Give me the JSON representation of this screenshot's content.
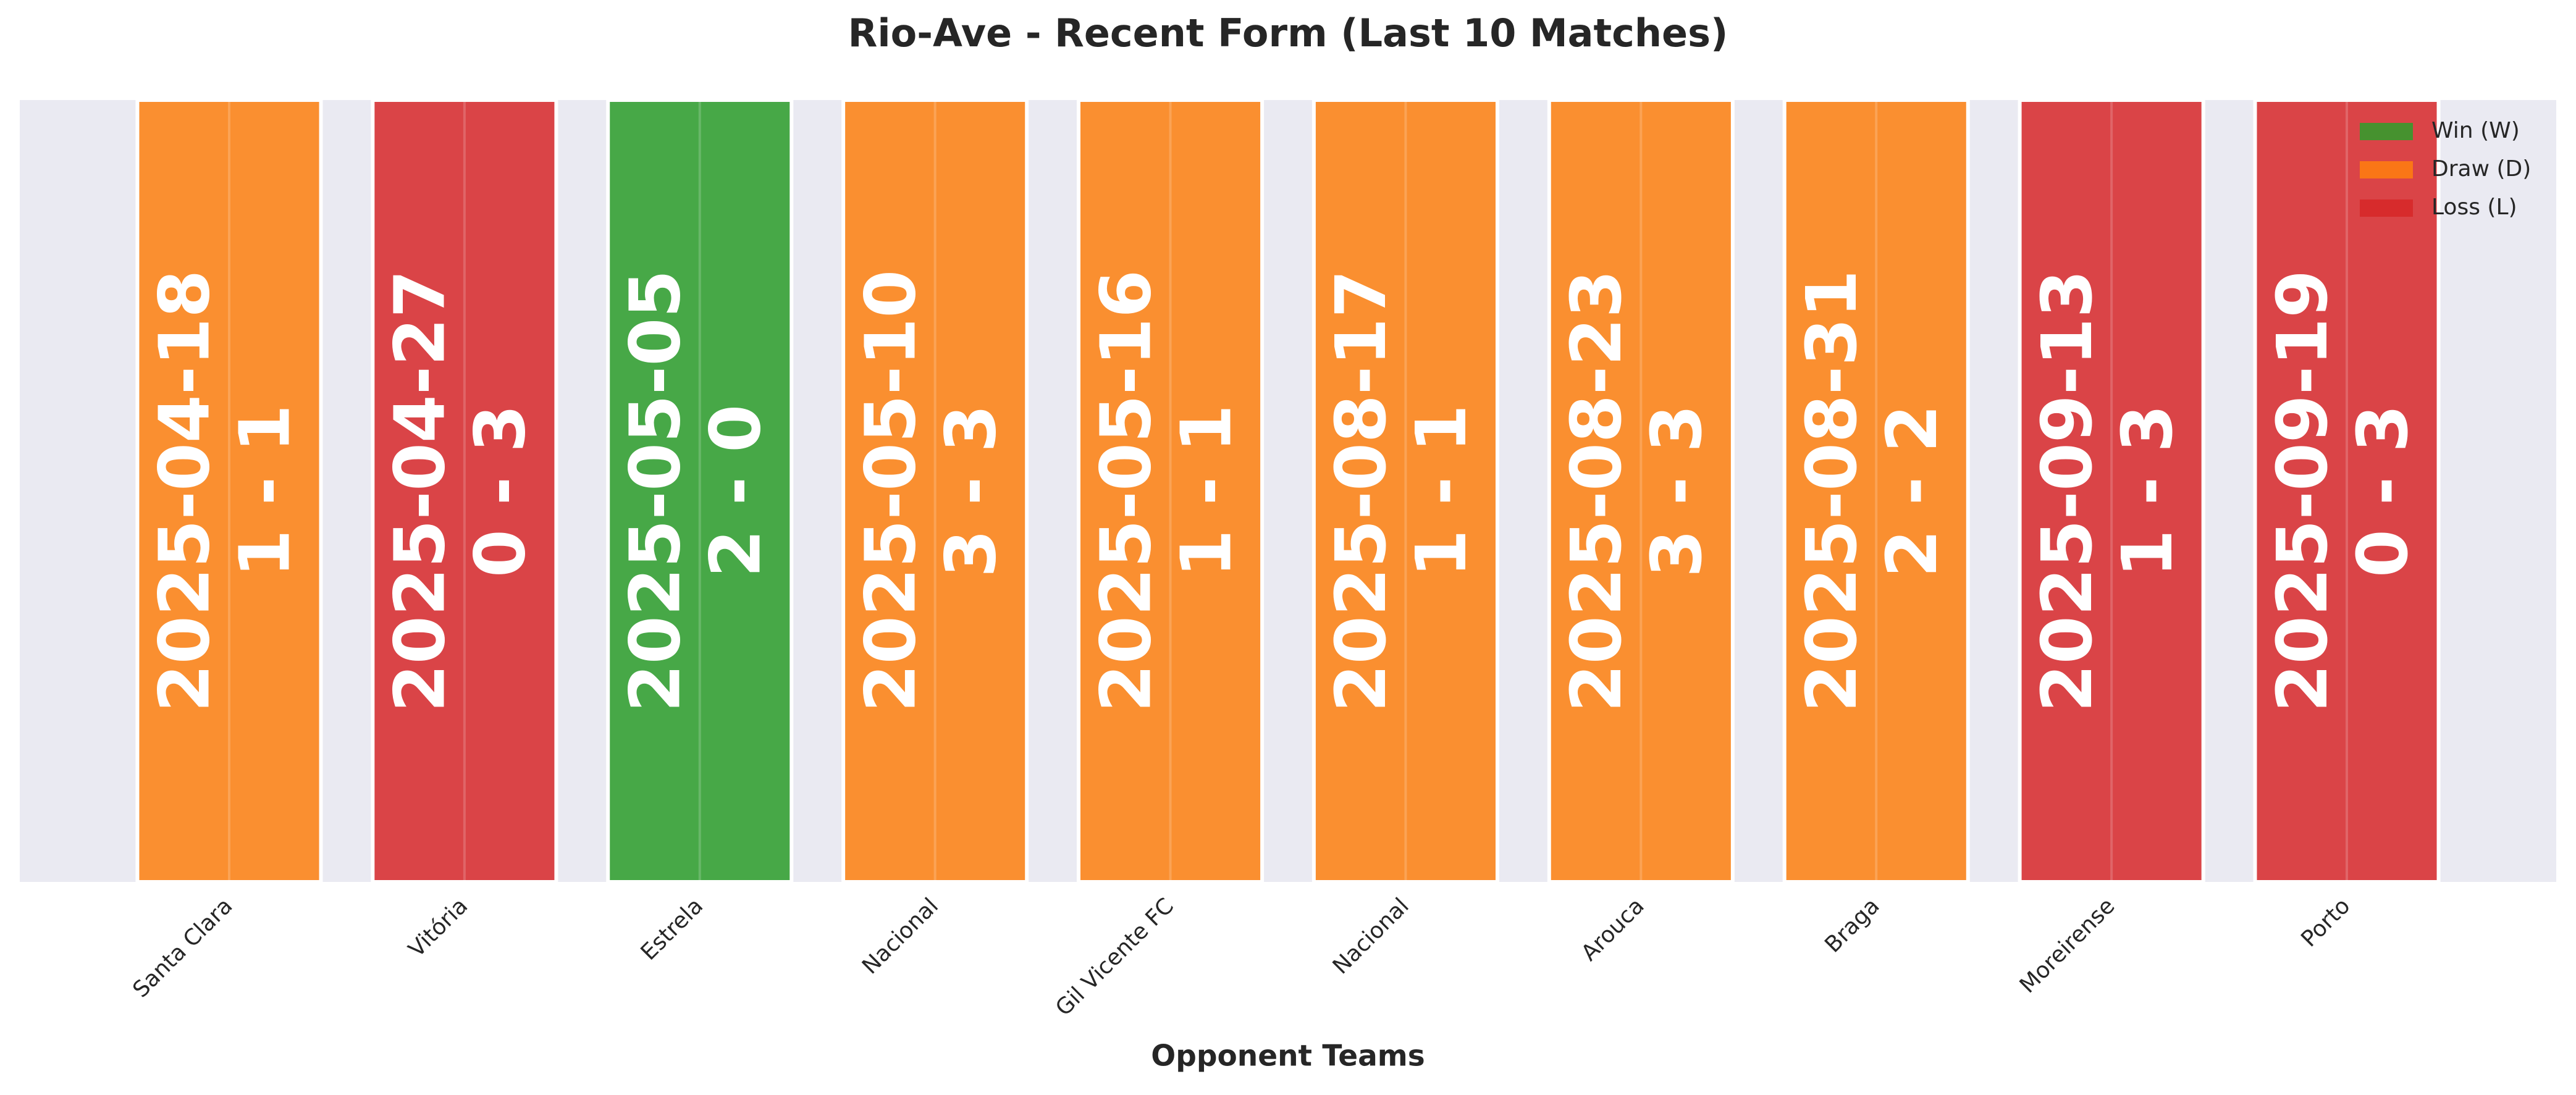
{
  "chart_data": {
    "type": "bar",
    "title": "Rio-Ave - Recent Form (Last 10 Matches)",
    "x_label": "Opponent Teams",
    "categories": [
      "Santa Clara",
      "Vitória",
      "Estrela",
      "Nacional",
      "Gil Vicente FC",
      "Nacional",
      "Arouca",
      "Braga",
      "Moreirense",
      "Porto"
    ],
    "values": [
      1,
      1,
      1,
      1,
      1,
      1,
      1,
      1,
      1,
      1
    ],
    "dates": [
      "2025-04-18",
      "2025-04-27",
      "2025-05-05",
      "2025-05-10",
      "2025-05-16",
      "2025-08-17",
      "2025-08-23",
      "2025-08-31",
      "2025-09-13",
      "2025-09-19"
    ],
    "scores": [
      "1 - 1",
      "0 - 3",
      "2 - 0",
      "3 - 3",
      "1 - 1",
      "1 - 1",
      "3 - 3",
      "2 - 2",
      "1 - 3",
      "0 - 3"
    ],
    "colors": [
      "#fa8f30",
      "#da4447",
      "#47a847",
      "#fa8f30",
      "#fa8f30",
      "#fa8f30",
      "#fa8f30",
      "#fa8f30",
      "#da4447",
      "#da4447"
    ],
    "ylim": [
      0,
      1
    ],
    "legend_position": "upper right",
    "legend": [
      {
        "name": "Win (W)",
        "color": "#2ca02c"
      },
      {
        "name": "Draw (D)",
        "color": "#ff7f0e"
      },
      {
        "name": "Loss (L)",
        "color": "#d62728"
      }
    ]
  }
}
